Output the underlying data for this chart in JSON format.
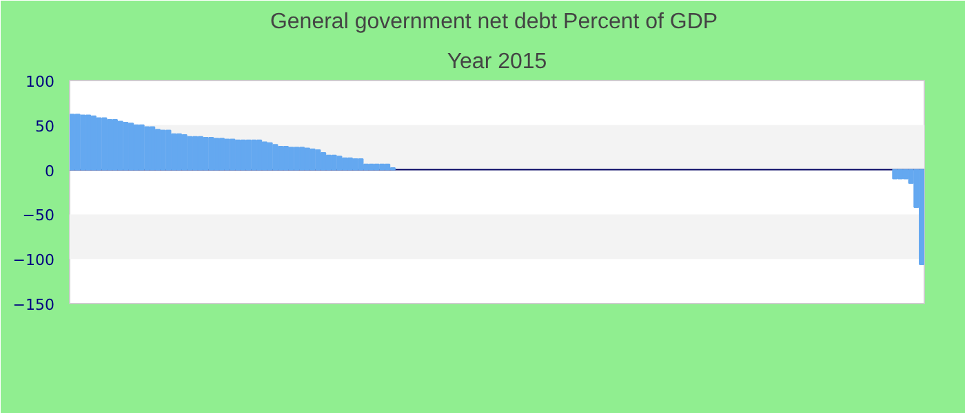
{
  "chart_data": {
    "type": "bar",
    "title": "General government net debt  Percent of GDP",
    "subtitle": "Year 2015",
    "categories": [
      null,
      null,
      null,
      null,
      null,
      null,
      null,
      null,
      null,
      null,
      null,
      null,
      null,
      null,
      null,
      null,
      null,
      null,
      null,
      null,
      null,
      null,
      null,
      null,
      null,
      null,
      null,
      null,
      null,
      null,
      null,
      null,
      null,
      null,
      null,
      null,
      null,
      null,
      null,
      null,
      null,
      null,
      null,
      null,
      null,
      null,
      null,
      null,
      null,
      null,
      null,
      null,
      null,
      null,
      null,
      null,
      null,
      null,
      null,
      null,
      null,
      null,
      null,
      null,
      null,
      null,
      null,
      null,
      null,
      null,
      null,
      null,
      null,
      null,
      null,
      null,
      null,
      null,
      null,
      null,
      null,
      null,
      null,
      null,
      null,
      null,
      null,
      null,
      null,
      null,
      null,
      null,
      null,
      null,
      null,
      null,
      null,
      null,
      null,
      null,
      null,
      null,
      null,
      null,
      null,
      null,
      null,
      null,
      null,
      null,
      null,
      null,
      null,
      null,
      null,
      null,
      null,
      null,
      null,
      null,
      null,
      null,
      null,
      null,
      null,
      null,
      null,
      null,
      null,
      null,
      null,
      null,
      null,
      null,
      null,
      null,
      null,
      null,
      null,
      null,
      null,
      null,
      null,
      null,
      null,
      null,
      null,
      null,
      null,
      null,
      null,
      null,
      null,
      null,
      null,
      null,
      null,
      null,
      null,
      null
    ],
    "values": [
      62,
      62,
      61,
      61,
      60,
      58,
      58,
      56,
      56,
      54,
      53,
      52,
      50,
      50,
      48,
      48,
      45,
      44,
      44,
      40,
      40,
      39,
      37,
      37,
      37,
      36,
      36,
      35,
      35,
      34,
      34,
      33,
      33,
      33,
      33,
      33,
      31,
      30,
      28,
      26,
      26,
      25,
      25,
      25,
      24,
      23,
      22,
      19,
      16,
      16,
      15,
      13,
      13,
      12,
      12,
      6,
      6,
      6,
      6,
      6,
      2,
      null,
      null,
      null,
      null,
      null,
      null,
      null,
      null,
      null,
      null,
      null,
      null,
      null,
      null,
      null,
      null,
      null,
      null,
      null,
      null,
      null,
      null,
      null,
      null,
      null,
      null,
      null,
      null,
      null,
      null,
      null,
      null,
      null,
      null,
      null,
      null,
      null,
      null,
      null,
      null,
      null,
      null,
      null,
      null,
      null,
      null,
      null,
      null,
      null,
      null,
      null,
      null,
      null,
      null,
      null,
      null,
      null,
      null,
      null,
      null,
      null,
      null,
      null,
      null,
      null,
      null,
      null,
      null,
      null,
      null,
      null,
      null,
      null,
      null,
      null,
      null,
      null,
      null,
      null,
      null,
      null,
      null,
      null,
      null,
      null,
      null,
      null,
      null,
      null,
      null,
      null,
      null,
      null,
      -10,
      -10,
      -10,
      -15,
      -42,
      -106
    ],
    "color": "#64a8f0",
    "ylim": [
      -150,
      100
    ],
    "yticks": [
      -150,
      -100,
      -50,
      0,
      50,
      100
    ]
  }
}
